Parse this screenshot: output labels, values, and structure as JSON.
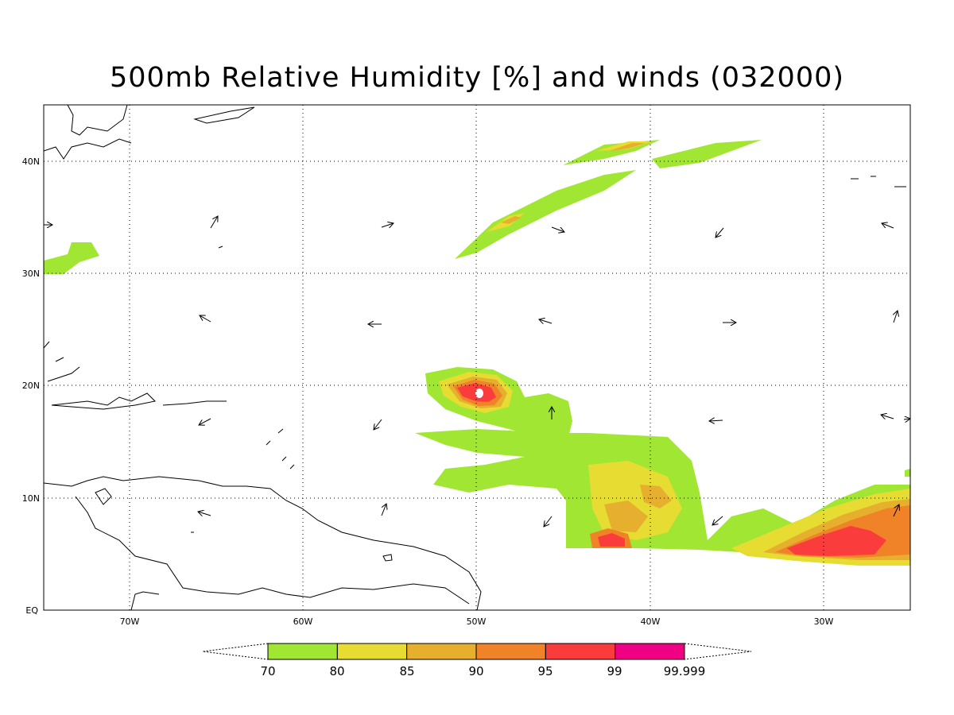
{
  "title": "500mb Relative Humidity [%] and winds (032000)",
  "axes": {
    "lat_labels": [
      "40N",
      "30N",
      "20N",
      "10N",
      "EQ"
    ],
    "lon_labels": [
      "70W",
      "60W",
      "50W",
      "40W",
      "30W"
    ],
    "lat_range": [
      0,
      45
    ],
    "lon_range": [
      -75,
      -25
    ],
    "grid": "dotted"
  },
  "colorbar": {
    "labels": [
      "70",
      "80",
      "85",
      "90",
      "95",
      "99",
      "99.999"
    ],
    "colors": [
      "#a0e632",
      "#e6dc32",
      "#e6af2d",
      "#f08228",
      "#fa3c3c",
      "#f00082"
    ]
  },
  "colors": {
    "coastline": "#000000",
    "frame": "#000000"
  }
}
